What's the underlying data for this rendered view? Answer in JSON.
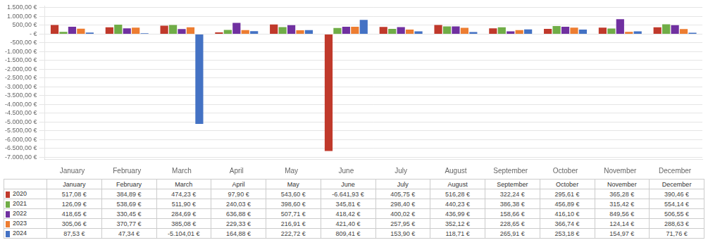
{
  "chart_data": {
    "type": "bar",
    "categories": [
      "January",
      "February",
      "March",
      "April",
      "May",
      "June",
      "July",
      "August",
      "September",
      "October",
      "November",
      "December"
    ],
    "series": [
      {
        "name": "2020",
        "color": "#c0392b",
        "values": [
          517.08,
          384.89,
          474.23,
          97.9,
          543.6,
          -6641.93,
          405.75,
          516.28,
          322.24,
          295.61,
          365.28,
          390.46
        ],
        "value_labels": [
          "517,08 €",
          "384,89 €",
          "474,23 €",
          "97,90 €",
          "543,60 €",
          "-6.641,93 €",
          "405,75 €",
          "516,28 €",
          "322,24 €",
          "295,61 €",
          "365,28 €",
          "390,46 €"
        ]
      },
      {
        "name": "2021",
        "color": "#70ad47",
        "values": [
          126.09,
          538.69,
          511.9,
          240.03,
          398.6,
          345.81,
          298.4,
          440.23,
          386.38,
          456.89,
          315.42,
          554.14
        ],
        "value_labels": [
          "126,09 €",
          "538,69 €",
          "511,90 €",
          "240,03 €",
          "398,60 €",
          "345,81 €",
          "298,40 €",
          "440,23 €",
          "386,38 €",
          "456,89 €",
          "315,42 €",
          "554,14 €"
        ]
      },
      {
        "name": "2022",
        "color": "#7030a0",
        "values": [
          418.65,
          330.45,
          284.69,
          636.88,
          507.71,
          418.42,
          400.02,
          436.99,
          158.66,
          416.1,
          849.56,
          506.55
        ],
        "value_labels": [
          "418,65 €",
          "330,45 €",
          "284,69 €",
          "636,88 €",
          "507,71 €",
          "418,42 €",
          "400,02 €",
          "436,99 €",
          "158,66 €",
          "416,10 €",
          "849,56 €",
          "506,55 €"
        ]
      },
      {
        "name": "2023",
        "color": "#ed7d31",
        "values": [
          305.06,
          370.77,
          385.08,
          229.33,
          216.91,
          421.4,
          257.95,
          352.12,
          228.65,
          366.74,
          124.14,
          288.63
        ],
        "value_labels": [
          "305,06 €",
          "370,77 €",
          "385,08 €",
          "229,33 €",
          "216,91 €",
          "421,40 €",
          "257,95 €",
          "352,12 €",
          "228,65 €",
          "366,74 €",
          "124,14 €",
          "288,63 €"
        ]
      },
      {
        "name": "2024",
        "color": "#4472c4",
        "values": [
          87.53,
          47.34,
          -5104.01,
          164.88,
          222.72,
          809.41,
          153.9,
          118.71,
          265.91,
          253.18,
          154.97,
          71.76
        ],
        "value_labels": [
          "87,53 €",
          "47,34 €",
          "-5.104,01 €",
          "164,88 €",
          "222,72 €",
          "809,41 €",
          "153,90 €",
          "118,71 €",
          "265,91 €",
          "253,18 €",
          "154,97 €",
          "71,76 €"
        ]
      }
    ],
    "ylim": [
      -7100,
      1600
    ],
    "yticks": [
      {
        "value": -7000,
        "label": "-7.000,00 €"
      },
      {
        "value": -6500,
        "label": "-6.500,00 €"
      },
      {
        "value": -6000,
        "label": "-6.000,00 €"
      },
      {
        "value": -5500,
        "label": "-5.500,00 €"
      },
      {
        "value": -5000,
        "label": "-5.000,00 €"
      },
      {
        "value": -4500,
        "label": "-4.500,00 €"
      },
      {
        "value": -4000,
        "label": "-4.000,00 €"
      },
      {
        "value": -3500,
        "label": "-3.500,00 €"
      },
      {
        "value": -3000,
        "label": "-3.000,00 €"
      },
      {
        "value": -2500,
        "label": "-2.500,00 €"
      },
      {
        "value": -2000,
        "label": "-2.000,00 €"
      },
      {
        "value": -1500,
        "label": "-1.500,00 €"
      },
      {
        "value": -1000,
        "label": "-1.000,00 €"
      },
      {
        "value": -500,
        "label": "-500,00 €"
      },
      {
        "value": 0,
        "label": "- €"
      },
      {
        "value": 500,
        "label": "500,00 €"
      },
      {
        "value": 1000,
        "label": "1.000,00 €"
      },
      {
        "value": 1500,
        "label": "1.500,00 €"
      }
    ],
    "grid": true
  }
}
